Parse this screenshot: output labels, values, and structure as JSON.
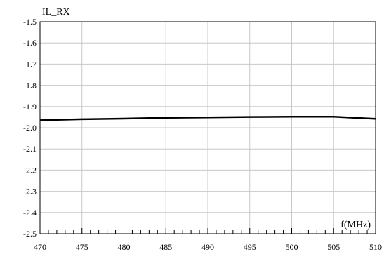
{
  "chart_data": {
    "type": "line",
    "ylabel": "IL_RX",
    "xlabel": "f(MHz)",
    "xlim": [
      470,
      510
    ],
    "ylim": [
      -2.5,
      -1.5
    ],
    "x_ticks": [
      "470",
      "475",
      "480",
      "485",
      "490",
      "495",
      "500",
      "505",
      "510"
    ],
    "y_ticks": [
      "-1.5",
      "-1.6",
      "-1.7",
      "-1.8",
      "-1.9",
      "-2.0",
      "-2.1",
      "-2.2",
      "-2.3",
      "-2.4",
      "-2.5"
    ],
    "grid": true,
    "colors": {
      "line": "#000000",
      "grid": "#c8c8c8",
      "frame": "#000000"
    },
    "series": [
      {
        "x": [
          470,
          475,
          480,
          485,
          490,
          495,
          500,
          505,
          510
        ],
        "values": [
          -1.965,
          -1.96,
          -1.957,
          -1.953,
          -1.951,
          -1.949,
          -1.948,
          -1.948,
          -1.958
        ]
      }
    ]
  }
}
